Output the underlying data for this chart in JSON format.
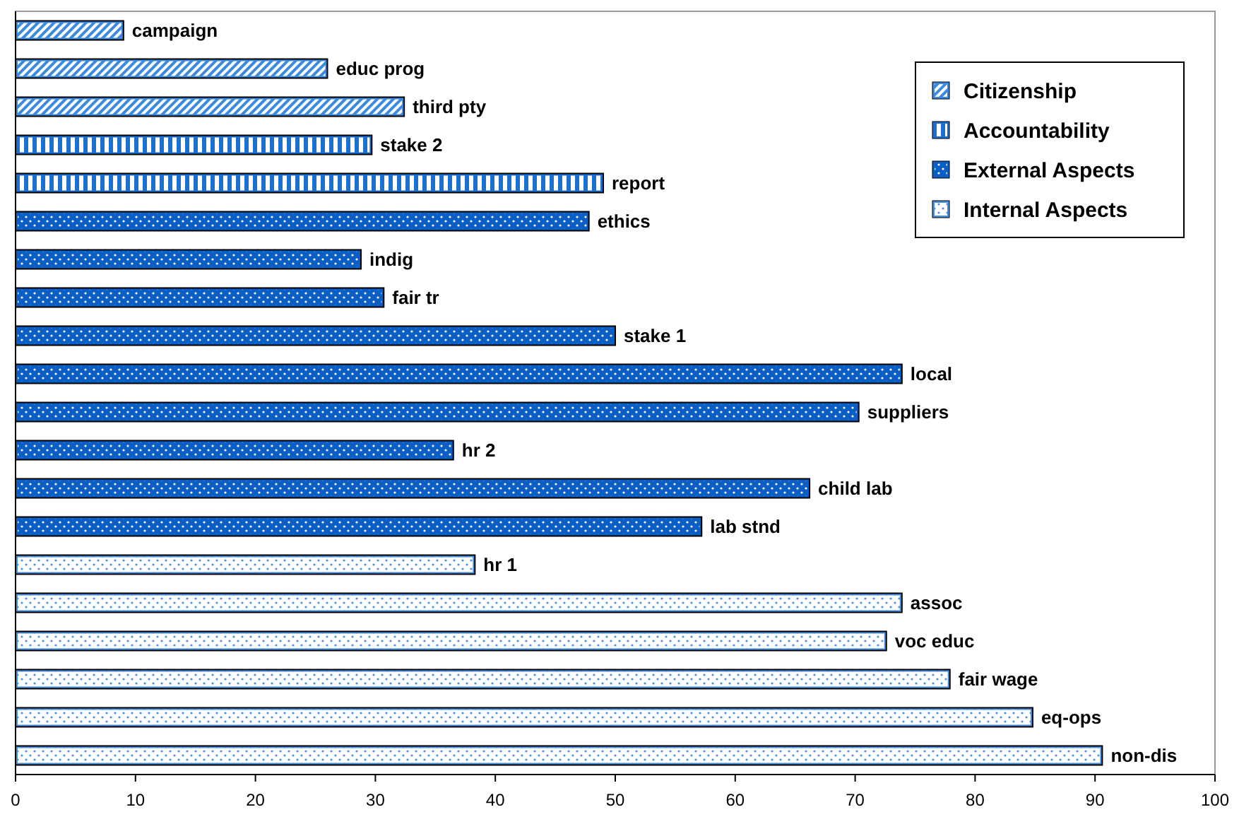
{
  "chart_data": {
    "type": "bar",
    "orientation": "horizontal",
    "categories": [
      "campaign",
      "educ prog",
      "third pty",
      "stake 2",
      "report",
      "ethics",
      "indig",
      "fair tr",
      "stake 1",
      "local",
      "suppliers",
      "hr 2",
      "child lab",
      "lab stnd",
      "hr 1",
      "assoc",
      "voc educ",
      "fair wage",
      "eq-ops",
      "non-dis"
    ],
    "series": [
      {
        "name": "Citizenship",
        "color": "#3a8ae0",
        "values": [
          9,
          26,
          32.4,
          null,
          null,
          null,
          null,
          null,
          null,
          null,
          null,
          null,
          null,
          null,
          null,
          null,
          null,
          null,
          null,
          null
        ]
      },
      {
        "name": "Accountability",
        "color": "#1a6fd0",
        "values": [
          null,
          null,
          null,
          29.7,
          49,
          null,
          null,
          null,
          null,
          null,
          null,
          null,
          null,
          null,
          null,
          null,
          null,
          null,
          null,
          null
        ]
      },
      {
        "name": "External Aspects",
        "color": "#0a5ec4",
        "values": [
          null,
          null,
          null,
          null,
          null,
          47.8,
          28.8,
          30.7,
          50,
          73.9,
          70.3,
          36.5,
          66.2,
          57.2,
          null,
          null,
          null,
          null,
          null,
          null
        ]
      },
      {
        "name": "Internal Aspects",
        "color": "#4a90e0",
        "values": [
          null,
          null,
          null,
          null,
          null,
          null,
          null,
          null,
          null,
          null,
          null,
          null,
          null,
          null,
          38.3,
          73.9,
          72.6,
          77.9,
          84.8,
          90.6
        ]
      }
    ],
    "xlim": [
      0,
      100
    ],
    "xticks": [
      0,
      10,
      20,
      30,
      40,
      50,
      60,
      70,
      80,
      90,
      100
    ],
    "grid": false,
    "legend": "top right"
  }
}
